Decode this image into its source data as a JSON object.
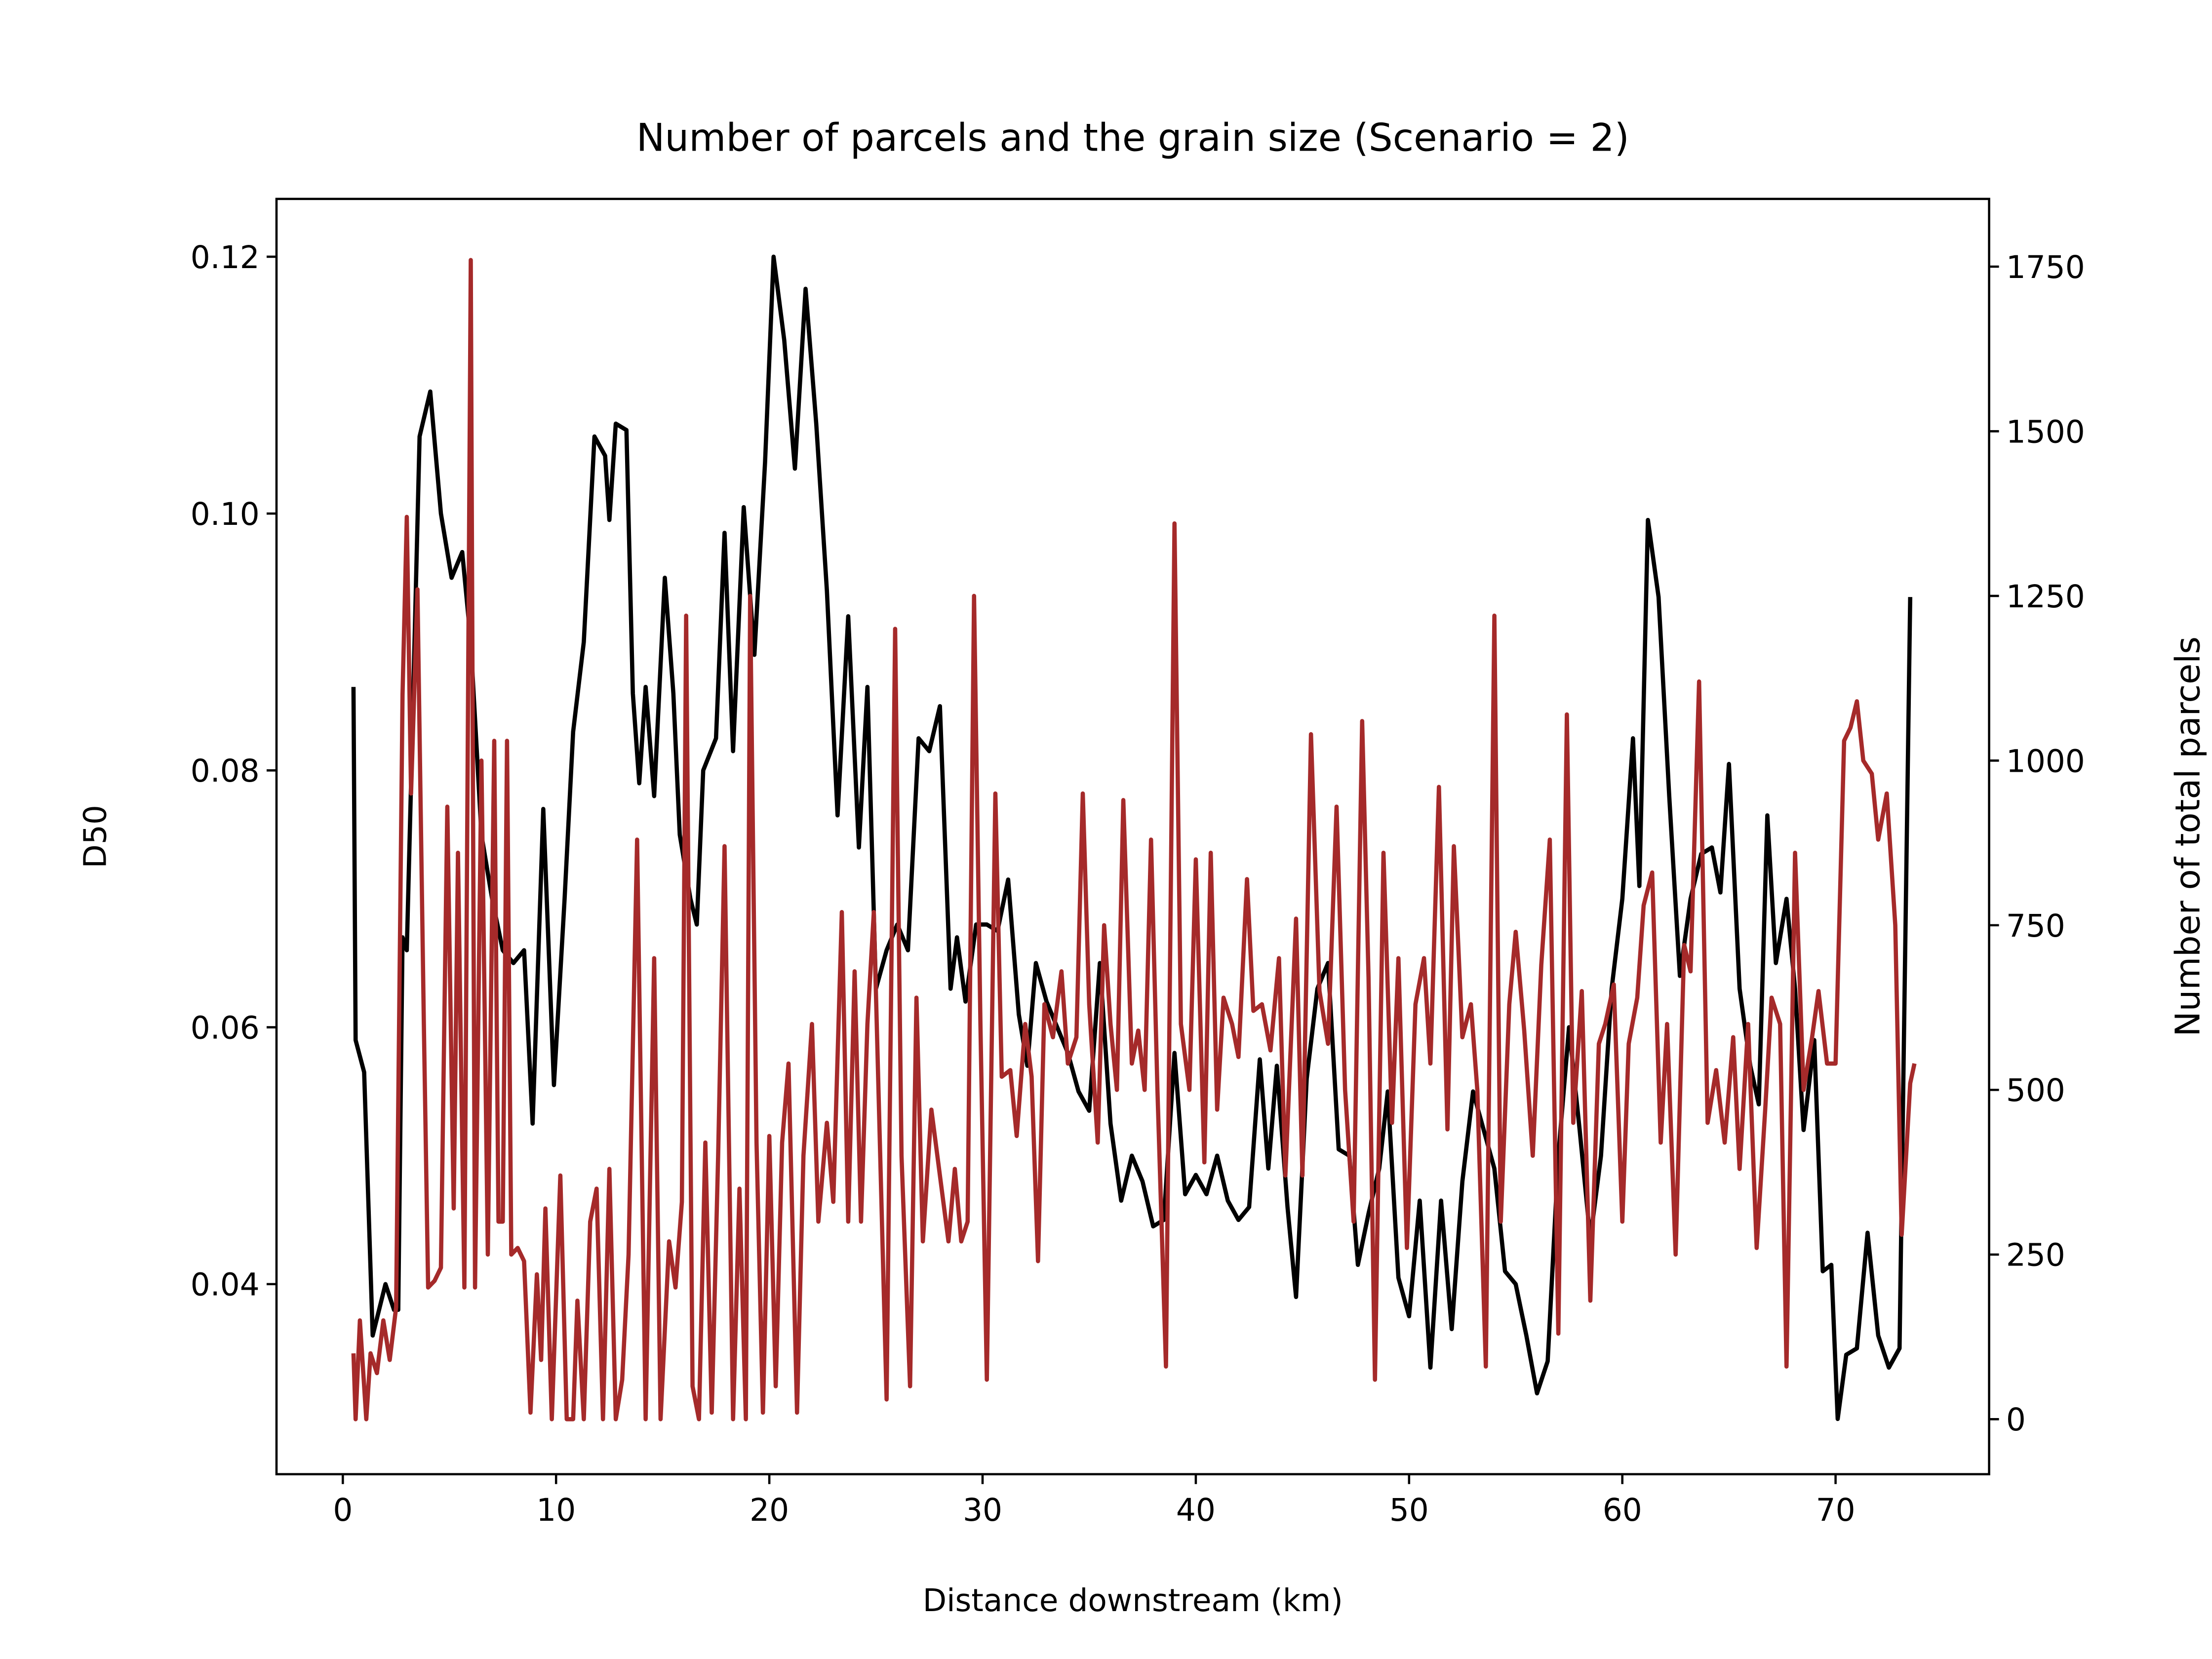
{
  "chart_data": {
    "type": "line",
    "title": "Number of parcels and the grain size (Scenario = 2)",
    "x_label": "Distance downstream (km)",
    "y_label": "D50",
    "y2_label": "Number of total parcels",
    "y2_label_color": "#a52a2a",
    "xlim": [
      -3.11,
      77.2
    ],
    "xticks": [
      0,
      10,
      20,
      30,
      40,
      50,
      60,
      70
    ],
    "ylim": [
      0.0252,
      0.1245
    ],
    "yticks": [
      0.04,
      0.06,
      0.08,
      {
        "value": 0.1,
        "label": "0.10"
      },
      0.12
    ],
    "y2lim": [
      -83.5,
      1852.8
    ],
    "y2ticks": [
      0,
      250,
      500,
      750,
      1000,
      1250,
      1500,
      1750
    ],
    "grid": false,
    "series": [
      {
        "color": "#000000",
        "axis": "y",
        "x": [
          0.5,
          0.6,
          1.0,
          1.4,
          2.0,
          2.4,
          2.6,
          2.8,
          3.0,
          3.2,
          3.6,
          4.1,
          4.6,
          5.1,
          5.6,
          6.0,
          6.5,
          7.0,
          7.5,
          8.0,
          8.5,
          8.9,
          9.4,
          9.9,
          10.4,
          10.8,
          11.3,
          11.8,
          12.3,
          12.5,
          12.8,
          13.3,
          13.6,
          13.9,
          14.2,
          14.6,
          15.1,
          15.5,
          15.8,
          16.3,
          16.6,
          16.9,
          17.5,
          17.9,
          18.3,
          18.8,
          19.3,
          19.8,
          20.2,
          20.7,
          21.2,
          21.7,
          22.2,
          22.7,
          23.2,
          23.7,
          24.2,
          24.6,
          25.0,
          25.5,
          26.0,
          26.5,
          27.0,
          27.5,
          28.0,
          28.5,
          28.8,
          29.2,
          29.7,
          30.2,
          30.7,
          31.2,
          31.7,
          32.1,
          32.5,
          33.0,
          33.5,
          34.0,
          34.5,
          35.0,
          35.5,
          36.0,
          36.5,
          37.0,
          37.5,
          38.0,
          38.5,
          39.0,
          39.5,
          40.0,
          40.5,
          41.0,
          41.5,
          42.0,
          42.5,
          43.0,
          43.4,
          43.8,
          44.3,
          44.7,
          45.2,
          45.7,
          46.2,
          46.7,
          47.2,
          47.6,
          48.1,
          48.6,
          49.0,
          49.5,
          50.0,
          50.5,
          51.0,
          51.5,
          52.0,
          52.5,
          53.0,
          53.5,
          54.0,
          54.5,
          55.0,
          55.5,
          56.0,
          56.5,
          57.0,
          57.5,
          58.0,
          58.5,
          59.0,
          59.5,
          60.0,
          60.5,
          60.8,
          61.2,
          61.7,
          62.2,
          62.7,
          63.2,
          63.7,
          64.2,
          64.6,
          65.0,
          65.5,
          66.0,
          66.4,
          66.8,
          67.2,
          67.7,
          68.1,
          68.5,
          69.0,
          69.4,
          69.8,
          70.1,
          70.5,
          71.0,
          71.5,
          72.0,
          72.5,
          73.0,
          73.5
        ],
        "values": [
          0.0865,
          0.059,
          0.0565,
          0.036,
          0.04,
          0.038,
          0.038,
          0.067,
          0.066,
          0.079,
          0.106,
          0.1095,
          0.1,
          0.095,
          0.097,
          0.09,
          0.075,
          0.07,
          0.066,
          0.065,
          0.066,
          0.0525,
          0.077,
          0.0555,
          0.07,
          0.083,
          0.09,
          0.106,
          0.1045,
          0.0995,
          0.107,
          0.1065,
          0.086,
          0.079,
          0.0865,
          0.078,
          0.095,
          0.086,
          0.075,
          0.07,
          0.068,
          0.08,
          0.0825,
          0.0985,
          0.0815,
          0.1005,
          0.089,
          0.104,
          0.12,
          0.1135,
          0.1035,
          0.1175,
          0.107,
          0.094,
          0.0765,
          0.092,
          0.074,
          0.0865,
          0.063,
          0.066,
          0.068,
          0.066,
          0.0825,
          0.0815,
          0.085,
          0.063,
          0.067,
          0.062,
          0.068,
          0.068,
          0.0675,
          0.0715,
          0.061,
          0.057,
          0.065,
          0.062,
          0.06,
          0.058,
          0.055,
          0.0535,
          0.065,
          0.0525,
          0.0465,
          0.05,
          0.048,
          0.0445,
          0.045,
          0.058,
          0.047,
          0.0485,
          0.047,
          0.05,
          0.0465,
          0.045,
          0.046,
          0.0575,
          0.049,
          0.057,
          0.046,
          0.039,
          0.056,
          0.063,
          0.065,
          0.0505,
          0.05,
          0.0415,
          0.0455,
          0.049,
          0.055,
          0.0405,
          0.0375,
          0.0465,
          0.0335,
          0.0465,
          0.0365,
          0.048,
          0.055,
          0.052,
          0.049,
          0.041,
          0.04,
          0.036,
          0.0315,
          0.034,
          0.05,
          0.06,
          0.052,
          0.0435,
          0.05,
          0.063,
          0.07,
          0.0825,
          0.071,
          0.0995,
          0.0935,
          0.078,
          0.064,
          0.07,
          0.0735,
          0.074,
          0.0705,
          0.0805,
          0.063,
          0.057,
          0.054,
          0.0765,
          0.065,
          0.07,
          0.063,
          0.052,
          0.059,
          0.041,
          0.0415,
          0.0295,
          0.0345,
          0.035,
          0.044,
          0.036,
          0.0335,
          0.035,
          0.0935
        ]
      },
      {
        "color": "#a52a2a",
        "axis": "y2",
        "x": [
          0.5,
          0.6,
          0.8,
          1.1,
          1.3,
          1.6,
          1.9,
          2.2,
          2.5,
          2.8,
          3.0,
          3.2,
          3.5,
          3.8,
          4.0,
          4.3,
          4.6,
          4.9,
          5.2,
          5.4,
          5.7,
          6.0,
          6.2,
          6.5,
          6.8,
          7.1,
          7.3,
          7.5,
          7.7,
          7.9,
          8.2,
          8.5,
          8.8,
          9.1,
          9.3,
          9.5,
          9.8,
          10.2,
          10.5,
          10.8,
          11.0,
          11.3,
          11.6,
          11.9,
          12.2,
          12.5,
          12.8,
          13.1,
          13.4,
          13.8,
          14.2,
          14.6,
          14.9,
          15.3,
          15.6,
          15.9,
          16.1,
          16.4,
          16.7,
          17.0,
          17.3,
          17.6,
          17.9,
          18.3,
          18.6,
          18.9,
          19.1,
          19.4,
          19.7,
          20.0,
          20.3,
          20.6,
          20.9,
          21.3,
          21.6,
          22.0,
          22.3,
          22.7,
          23.0,
          23.4,
          23.7,
          24.0,
          24.3,
          24.6,
          24.9,
          25.2,
          25.5,
          25.9,
          26.2,
          26.6,
          26.9,
          27.2,
          27.6,
          28.0,
          28.4,
          28.7,
          29.0,
          29.3,
          29.6,
          29.9,
          30.2,
          30.6,
          30.9,
          31.3,
          31.6,
          32.0,
          32.3,
          32.6,
          32.9,
          33.3,
          33.7,
          34.0,
          34.4,
          34.7,
          35.0,
          35.4,
          35.7,
          36.0,
          36.3,
          36.6,
          37.0,
          37.3,
          37.6,
          37.9,
          38.2,
          38.6,
          39.0,
          39.3,
          39.7,
          40.0,
          40.4,
          40.7,
          41.0,
          41.3,
          41.7,
          42.0,
          42.4,
          42.7,
          43.1,
          43.5,
          43.9,
          44.2,
          44.7,
          45.0,
          45.4,
          45.8,
          46.2,
          46.6,
          47.0,
          47.4,
          47.8,
          48.1,
          48.4,
          48.8,
          49.2,
          49.5,
          49.9,
          50.3,
          50.7,
          51.0,
          51.4,
          51.8,
          52.1,
          52.5,
          52.9,
          53.2,
          53.6,
          54.0,
          54.3,
          54.7,
          55.0,
          55.4,
          55.8,
          56.2,
          56.6,
          57.0,
          57.4,
          57.7,
          58.1,
          58.5,
          58.9,
          59.2,
          59.6,
          60.0,
          60.3,
          60.7,
          61.0,
          61.4,
          61.8,
          62.1,
          62.5,
          62.9,
          63.2,
          63.6,
          64.0,
          64.4,
          64.8,
          65.2,
          65.5,
          65.9,
          66.3,
          66.7,
          67.0,
          67.4,
          67.7,
          68.1,
          68.5,
          68.9,
          69.2,
          69.6,
          70.0,
          70.4,
          70.7,
          71.0,
          71.3,
          71.7,
          72.0,
          72.4,
          72.8,
          73.1,
          73.5,
          73.7
        ],
        "values": [
          100,
          0,
          150,
          0,
          100,
          70,
          150,
          90,
          170,
          1100,
          1370,
          950,
          1260,
          600,
          200,
          210,
          230,
          930,
          320,
          860,
          200,
          1760,
          200,
          1000,
          250,
          1030,
          300,
          300,
          1030,
          250,
          260,
          240,
          10,
          220,
          90,
          320,
          0,
          370,
          0,
          0,
          180,
          0,
          300,
          350,
          0,
          380,
          0,
          60,
          250,
          880,
          0,
          700,
          0,
          270,
          200,
          330,
          1220,
          50,
          0,
          420,
          10,
          400,
          870,
          0,
          350,
          0,
          1250,
          420,
          10,
          430,
          50,
          420,
          540,
          10,
          400,
          600,
          300,
          450,
          330,
          770,
          300,
          680,
          300,
          600,
          770,
          400,
          30,
          1200,
          400,
          50,
          640,
          270,
          470,
          370,
          270,
          380,
          270,
          300,
          1250,
          600,
          60,
          950,
          520,
          530,
          430,
          600,
          520,
          240,
          630,
          580,
          680,
          540,
          580,
          950,
          630,
          420,
          750,
          600,
          500,
          940,
          540,
          590,
          500,
          880,
          500,
          80,
          1360,
          600,
          500,
          850,
          390,
          860,
          470,
          640,
          600,
          550,
          820,
          620,
          630,
          560,
          700,
          370,
          760,
          370,
          1040,
          650,
          570,
          930,
          500,
          300,
          1060,
          670,
          60,
          860,
          450,
          700,
          260,
          630,
          700,
          540,
          960,
          440,
          870,
          580,
          630,
          500,
          80,
          1220,
          300,
          630,
          740,
          590,
          400,
          690,
          880,
          130,
          1070,
          450,
          650,
          180,
          570,
          600,
          660,
          300,
          570,
          640,
          780,
          830,
          420,
          600,
          250,
          720,
          680,
          1120,
          450,
          530,
          420,
          580,
          380,
          600,
          260,
          470,
          640,
          600,
          80,
          860,
          500,
          580,
          650,
          540,
          540,
          1030,
          1050,
          1090,
          1000,
          980,
          880,
          950,
          750,
          280,
          510,
          540
        ]
      }
    ]
  }
}
